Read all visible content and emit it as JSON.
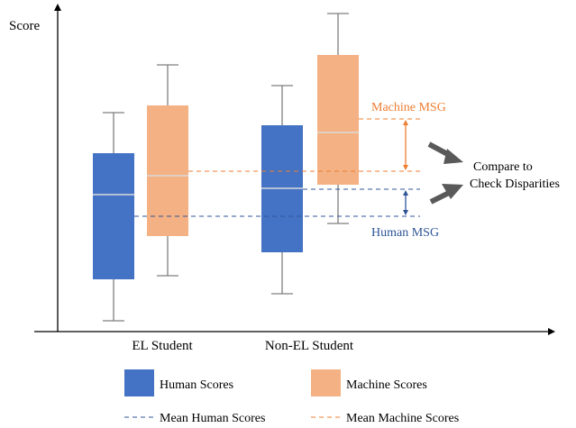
{
  "colors": {
    "human": "#4472C4",
    "machine": "#F4B183",
    "human_text": "#2F5597",
    "machine_text": "#ED7D31",
    "whisker": "#7F7F7F",
    "median": "#D9D9D9",
    "axis": "#000000",
    "arrow": "#595959"
  },
  "axis": {
    "y_label": "Score"
  },
  "groups": [
    {
      "label": "EL Student"
    },
    {
      "label": "Non-EL Student"
    }
  ],
  "annotations": {
    "machine_msg": "Machine MSG",
    "human_msg": "Human MSG",
    "compare_line1": "Compare to",
    "compare_line2": "Check Disparities"
  },
  "legend": {
    "human_scores": "Human Scores",
    "machine_scores": "Machine Scores",
    "mean_human": "Mean Human Scores",
    "mean_machine": "Mean Machine Scores"
  }
}
